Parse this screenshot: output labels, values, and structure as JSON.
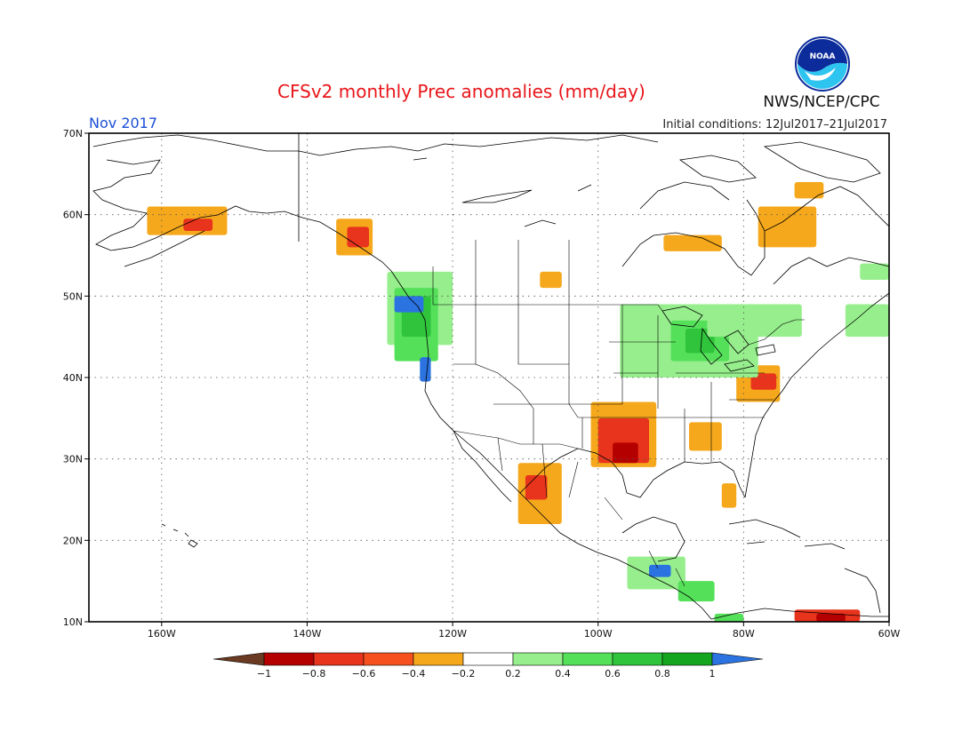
{
  "header": {
    "title": "CFSv2 monthly Prec anomalies (mm/day)",
    "organization": "NWS/NCEP/CPC",
    "logo_text": "NOAA",
    "valid_month": "Nov 2017",
    "initial_conditions": "Initial conditions: 12Jul2017–21Jul2017"
  },
  "map": {
    "lon_range": [
      -170,
      -60
    ],
    "lat_range": [
      10,
      70
    ],
    "lat_ticks": [
      {
        "value": 70,
        "label": "70N"
      },
      {
        "value": 60,
        "label": "60N"
      },
      {
        "value": 50,
        "label": "50N"
      },
      {
        "value": 40,
        "label": "40N"
      },
      {
        "value": 30,
        "label": "30N"
      },
      {
        "value": 20,
        "label": "20N"
      },
      {
        "value": 10,
        "label": "10N"
      }
    ],
    "lon_ticks": [
      {
        "value": -160,
        "label": "160W"
      },
      {
        "value": -140,
        "label": "140W"
      },
      {
        "value": -120,
        "label": "120W"
      },
      {
        "value": -100,
        "label": "100W"
      },
      {
        "value": -80,
        "label": "80W"
      },
      {
        "value": -60,
        "label": "60W"
      }
    ],
    "gridlines": "dotted",
    "colors": {
      "dry_extreme": "#6b3a22",
      "dry_08": "#b50000",
      "dry_06": "#e8341c",
      "dry_04": "#f5501e",
      "dry_02": "#f5a81c",
      "neutral": "#ffffff",
      "wet_02": "#96ee8c",
      "wet_04": "#55e05a",
      "wet_06": "#2fc43b",
      "wet_08": "#15a51f",
      "wet_extreme": "#2a73e0"
    },
    "anomaly_patches": [
      {
        "region": "Southern Alaska",
        "lon": [
          -162,
          -151
        ],
        "lat": [
          57.5,
          61
        ],
        "level": "dry_02"
      },
      {
        "region": "Southern Alaska core",
        "lon": [
          -157,
          -153
        ],
        "lat": [
          58,
          59.5
        ],
        "level": "dry_06"
      },
      {
        "region": "Alaska Panhandle",
        "lon": [
          -136,
          -131
        ],
        "lat": [
          55,
          59.5
        ],
        "level": "dry_02"
      },
      {
        "region": "Alaska Panhandle core",
        "lon": [
          -134.5,
          -131.5
        ],
        "lat": [
          56,
          58.5
        ],
        "level": "dry_06"
      },
      {
        "region": "British Columbia coast",
        "lon": [
          -129,
          -120
        ],
        "lat": [
          44,
          53
        ],
        "level": "wet_02"
      },
      {
        "region": "Pacific Northwest",
        "lon": [
          -128,
          -122
        ],
        "lat": [
          42,
          51
        ],
        "level": "wet_04"
      },
      {
        "region": "Washington coast",
        "lon": [
          -127,
          -123
        ],
        "lat": [
          45,
          50
        ],
        "level": "wet_06"
      },
      {
        "region": "Vancouver Island",
        "lon": [
          -128,
          -124
        ],
        "lat": [
          48,
          50
        ],
        "level": "wet_extreme"
      },
      {
        "region": "Oregon coast",
        "lon": [
          -124.5,
          -123
        ],
        "lat": [
          39.5,
          42.5
        ],
        "level": "wet_extreme"
      },
      {
        "region": "Southern Plains",
        "lon": [
          -101,
          -92
        ],
        "lat": [
          29,
          37
        ],
        "level": "dry_02"
      },
      {
        "region": "Oklahoma–Texas",
        "lon": [
          -100,
          -93
        ],
        "lat": [
          29.5,
          35
        ],
        "level": "dry_06"
      },
      {
        "region": "East Texas",
        "lon": [
          -98,
          -94.5
        ],
        "lat": [
          29.5,
          32
        ],
        "level": "dry_08"
      },
      {
        "region": "Sonora–Sinaloa",
        "lon": [
          -111,
          -105
        ],
        "lat": [
          22,
          29.5
        ],
        "level": "dry_02"
      },
      {
        "region": "Sonora core",
        "lon": [
          -110,
          -107
        ],
        "lat": [
          25,
          28
        ],
        "level": "dry_06"
      },
      {
        "region": "Southeast US",
        "lon": [
          -87.5,
          -83
        ],
        "lat": [
          31,
          34.5
        ],
        "level": "dry_02"
      },
      {
        "region": "Mid-Atlantic",
        "lon": [
          -81,
          -75
        ],
        "lat": [
          37,
          41.5
        ],
        "level": "dry_02"
      },
      {
        "region": "Delmarva",
        "lon": [
          -79,
          -75.5
        ],
        "lat": [
          38.5,
          40.5
        ],
        "level": "dry_06"
      },
      {
        "region": "Great Lakes",
        "lon": [
          -97,
          -78
        ],
        "lat": [
          40,
          49
        ],
        "level": "wet_02"
      },
      {
        "region": "Upper Midwest",
        "lon": [
          -90,
          -82
        ],
        "lat": [
          42,
          47
        ],
        "level": "wet_04"
      },
      {
        "region": "Michigan",
        "lon": [
          -88,
          -84
        ],
        "lat": [
          43,
          46
        ],
        "level": "wet_06"
      },
      {
        "region": "Hudson Bay east",
        "lon": [
          -85,
          -72
        ],
        "lat": [
          45,
          49
        ],
        "level": "wet_02"
      },
      {
        "region": "Quebec",
        "lon": [
          -78,
          -70
        ],
        "lat": [
          56,
          61
        ],
        "level": "dry_02"
      },
      {
        "region": "Northern Quebec",
        "lon": [
          -73,
          -69
        ],
        "lat": [
          62,
          64
        ],
        "level": "dry_02"
      },
      {
        "region": "Hudson Bay south",
        "lon": [
          -91,
          -83
        ],
        "lat": [
          55.5,
          57.5
        ],
        "level": "dry_02"
      },
      {
        "region": "Ontario north",
        "lon": [
          -108,
          -105
        ],
        "lat": [
          51,
          53
        ],
        "level": "dry_02"
      },
      {
        "region": "Southern Mexico",
        "lon": [
          -96,
          -88
        ],
        "lat": [
          14,
          18
        ],
        "level": "wet_02"
      },
      {
        "region": "Yucatán",
        "lon": [
          -93,
          -90
        ],
        "lat": [
          15.5,
          17
        ],
        "level": "wet_extreme"
      },
      {
        "region": "Central America",
        "lon": [
          -89,
          -84
        ],
        "lat": [
          12.5,
          15
        ],
        "level": "wet_04"
      },
      {
        "region": "Panama",
        "lon": [
          -84,
          -80
        ],
        "lat": [
          9,
          11
        ],
        "level": "wet_04"
      },
      {
        "region": "Northern South America",
        "lon": [
          -73,
          -64
        ],
        "lat": [
          10,
          11.5
        ],
        "level": "dry_06"
      },
      {
        "region": "Venezuela coast",
        "lon": [
          -70,
          -66
        ],
        "lat": [
          10,
          11
        ],
        "level": "dry_08"
      },
      {
        "region": "Florida",
        "lon": [
          -83,
          -81
        ],
        "lat": [
          24,
          27
        ],
        "level": "dry_02"
      },
      {
        "region": "Nova Scotia",
        "lon": [
          -66,
          -60
        ],
        "lat": [
          45,
          49
        ],
        "level": "wet_02"
      },
      {
        "region": "Labrador",
        "lon": [
          -64,
          -60
        ],
        "lat": [
          52,
          54
        ],
        "level": "wet_02"
      }
    ]
  },
  "colorbar": {
    "ticks": [
      "−1",
      "−0.8",
      "−0.6",
      "−0.4",
      "−0.2",
      "0.2",
      "0.4",
      "0.6",
      "0.8",
      "1"
    ],
    "bins": [
      "dry_08",
      "dry_06",
      "dry_04",
      "dry_02",
      "neutral",
      "wet_02",
      "wet_04",
      "wet_06",
      "wet_08"
    ],
    "left_arrow": "dry_extreme",
    "right_arrow": "wet_extreme"
  }
}
